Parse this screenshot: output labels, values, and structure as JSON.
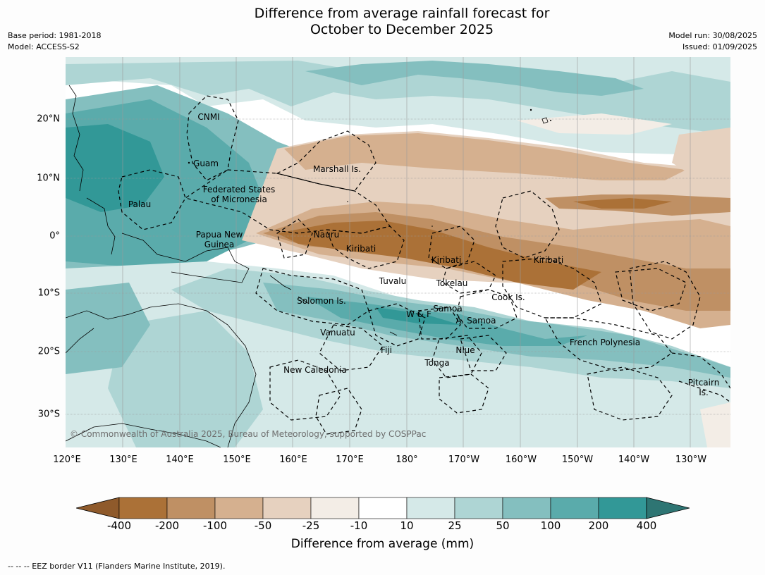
{
  "title_line1": "Difference from average rainfall forecast for",
  "title_line2": "October to December 2025",
  "meta_left": [
    "Base period: 1981-2018",
    "Model: ACCESS-S2"
  ],
  "meta_right": [
    "Model run: 30/08/2025",
    "Issued: 01/09/2025"
  ],
  "lat_labels": [
    "20°N",
    "10°N",
    "0°",
    "10°S",
    "20°S",
    "30°S"
  ],
  "lon_labels": [
    "120°E",
    "130°E",
    "140°E",
    "150°E",
    "160°E",
    "170°E",
    "180°",
    "170°W",
    "160°W",
    "150°W",
    "140°W",
    "130°W"
  ],
  "places": [
    "CNMI",
    "Guam",
    "Marshall Is.",
    "Federated States\nof Micronesia",
    "Palau",
    "Papua New\nGuinea",
    "Nauru",
    "Kiribati",
    "Kiribati",
    "Kiribati",
    "Tuvalu",
    "Tokelau",
    "Solomon Is.",
    "Samoa",
    "W & F",
    "A. Samoa",
    "Cook Is.",
    "Vanuatu",
    "Fiji",
    "Niue",
    "French Polynesia",
    "New Caledonia",
    "Tonga",
    "Pitcairn\nIs."
  ],
  "copyright": "© Commonwealth of Australia 2025, Bureau of Meteorology, supported by COSPPac",
  "colorbar": {
    "ticks": [
      "-400",
      "-200",
      "-100",
      "-50",
      "-25",
      "-10",
      "10",
      "25",
      "50",
      "100",
      "200",
      "400"
    ],
    "colors": [
      "#8f5a2b",
      "#ab7137",
      "#bf9064",
      "#d5b08f",
      "#e6d1bf",
      "#f3ede6",
      "#ffffff",
      "#d5e9e8",
      "#aed5d4",
      "#84bfbf",
      "#5aabab",
      "#329897",
      "#2e7573"
    ],
    "label": "Difference from average (mm)"
  },
  "footnote": "--  --  -- EEZ border V11 (Flanders Marine Institute, 2019)."
}
